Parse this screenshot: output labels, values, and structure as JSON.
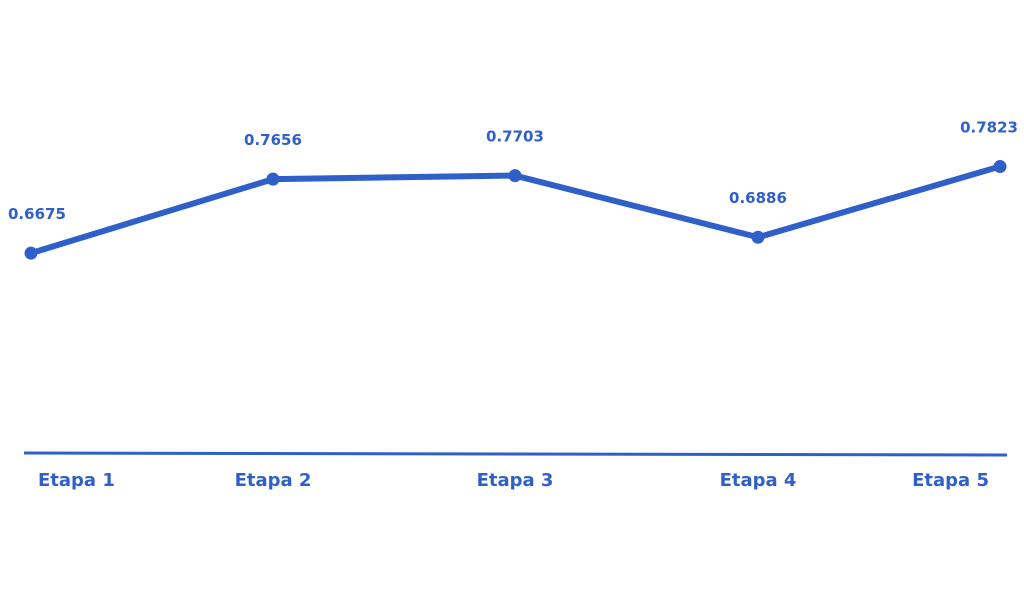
{
  "chart_data": {
    "type": "line",
    "title": "",
    "xlabel": "",
    "ylabel": "",
    "categories": [
      "Etapa 1",
      "Etapa 2",
      "Etapa 3",
      "Etapa 4",
      "Etapa 5"
    ],
    "series": [
      {
        "values": [
          0.6675,
          0.7656,
          0.7703,
          0.6886,
          0.7823
        ],
        "data_labels": [
          "0.6675",
          "0.7656",
          "0.7703",
          "0.6886",
          "0.7823"
        ]
      }
    ],
    "ylim": [
      0.4,
      0.95
    ],
    "grid": false,
    "legend": "none",
    "colors": {
      "line": "#2f5fc9",
      "text": "#2f5fc9",
      "axis": "#2f5fc9"
    }
  }
}
